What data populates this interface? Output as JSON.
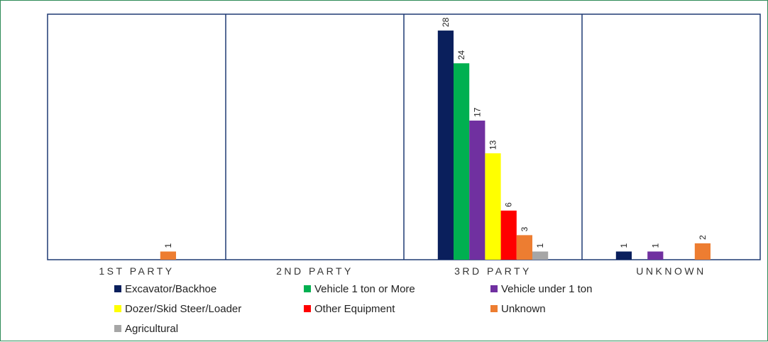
{
  "chart_data": {
    "type": "bar",
    "title": "",
    "xlabel": "",
    "ylabel": "",
    "categories": [
      "1ST PARTY",
      "2ND PARTY",
      "3RD PARTY",
      "UNKNOWN"
    ],
    "ylim": [
      0,
      30
    ],
    "grid": false,
    "legend_position": "bottom",
    "series": [
      {
        "name": "Excavator/Backhoe",
        "color": "#0a1f5c",
        "values": [
          null,
          null,
          28,
          1
        ]
      },
      {
        "name": "Vehicle 1 ton or More",
        "color": "#00b050",
        "values": [
          null,
          null,
          24,
          null
        ]
      },
      {
        "name": "Vehicle under 1 ton",
        "color": "#7030a0",
        "values": [
          null,
          null,
          17,
          1
        ]
      },
      {
        "name": "Dozer/Skid Steer/Loader",
        "color": "#ffff00",
        "values": [
          null,
          null,
          13,
          null
        ]
      },
      {
        "name": "Other Equipment",
        "color": "#ff0000",
        "values": [
          null,
          null,
          6,
          null
        ]
      },
      {
        "name": "Unknown",
        "color": "#ed7d31",
        "values": [
          1,
          null,
          3,
          2
        ]
      },
      {
        "name": "Agricultural",
        "color": "#a6a6a6",
        "values": [
          null,
          null,
          1,
          null
        ]
      }
    ]
  },
  "colors": {
    "frame_border": "#2e8b57",
    "plot_border": "#1f3a73",
    "background": "#ffffff"
  }
}
